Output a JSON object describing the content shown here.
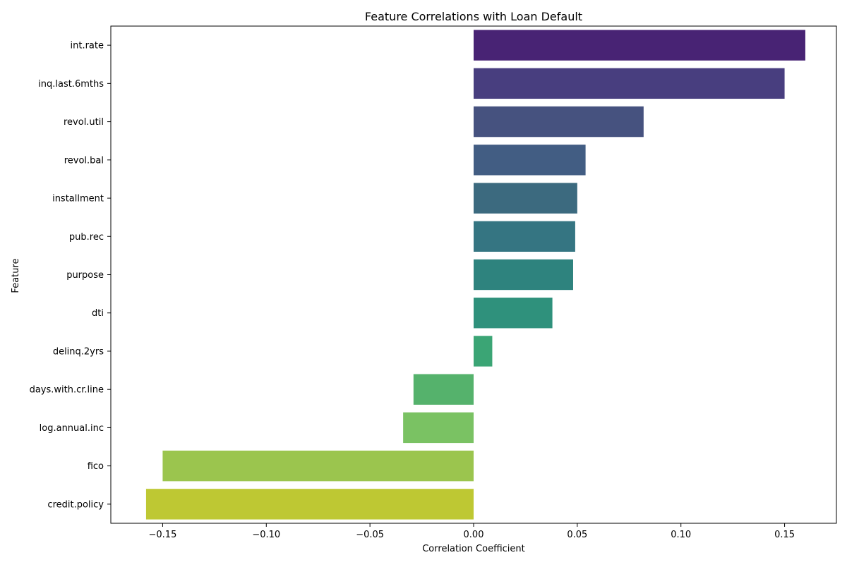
{
  "chart_data": {
    "type": "bar",
    "orientation": "horizontal",
    "title": "Feature Correlations with Loan Default",
    "xlabel": "Correlation Coefficient",
    "ylabel": "Feature",
    "xlim": [
      -0.175,
      0.175
    ],
    "xticks": [
      -0.15,
      -0.1,
      -0.05,
      0.0,
      0.05,
      0.1,
      0.15
    ],
    "xtick_labels": [
      "−0.15",
      "−0.10",
      "−0.05",
      "0.00",
      "0.05",
      "0.10",
      "0.15"
    ],
    "grid": false,
    "categories": [
      "int.rate",
      "inq.last.6mths",
      "revol.util",
      "revol.bal",
      "installment",
      "pub.rec",
      "purpose",
      "dti",
      "delinq.2yrs",
      "days.with.cr.line",
      "log.annual.inc",
      "fico",
      "credit.policy"
    ],
    "values": [
      0.16,
      0.15,
      0.082,
      0.054,
      0.05,
      0.049,
      0.048,
      0.038,
      0.009,
      -0.029,
      -0.034,
      -0.15,
      -0.158
    ],
    "colors": [
      "#482374",
      "#483e7f",
      "#46527f",
      "#425d83",
      "#3c6a7f",
      "#357582",
      "#2e837e",
      "#2f917c",
      "#3ba575",
      "#55b26c",
      "#7ac263",
      "#9bc54e",
      "#bec833"
    ]
  }
}
